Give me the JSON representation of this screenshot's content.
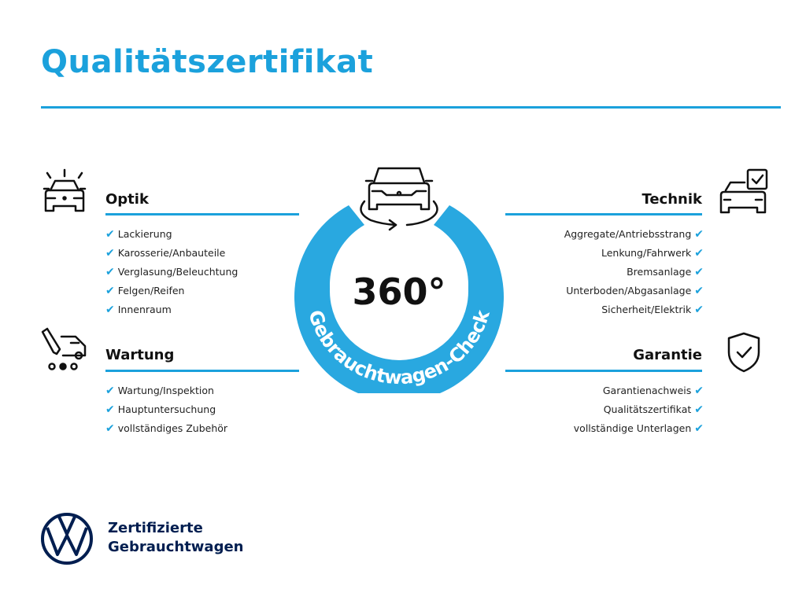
{
  "title": "Qualitätszertifikat",
  "colors": {
    "accent": "#1ba1dc",
    "ring": "#29a8e0",
    "brand_navy": "#001e50"
  },
  "badge": {
    "value": "360°",
    "ring_text": "Gebrauchtwagen-Check",
    "icon": "car-rotate-icon"
  },
  "sections": {
    "optik": {
      "title": "Optik",
      "icon": "car-lights-icon",
      "items": [
        "Lackierung",
        "Karosserie/Anbauteile",
        "Verglasung/Beleuchtung",
        "Felgen/Reifen",
        "Innenraum"
      ]
    },
    "wartung": {
      "title": "Wartung",
      "icon": "service-tools-icon",
      "items": [
        "Wartung/Inspektion",
        "Hauptuntersuchung",
        "vollständiges Zubehör"
      ]
    },
    "technik": {
      "title": "Technik",
      "icon": "car-checklist-icon",
      "items": [
        "Aggregate/Antriebsstrang",
        "Lenkung/Fahrwerk",
        "Bremsanlage",
        "Unterboden/Abgasanlage",
        "Sicherheit/Elektrik"
      ]
    },
    "garantie": {
      "title": "Garantie",
      "icon": "shield-check-icon",
      "items": [
        "Garantienachweis",
        "Qualitätszertifikat",
        "vollständige Unterlagen"
      ]
    }
  },
  "check_glyph": "✔",
  "brand": {
    "line1": "Zertifizierte",
    "line2": "Gebrauchtwagen",
    "logo": "VW"
  }
}
